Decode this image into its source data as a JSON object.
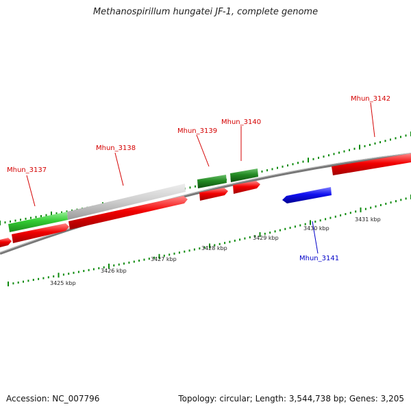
{
  "title": "Methanospirillum hungatei JF-1, complete genome",
  "footer": {
    "accession": "Accession: NC_007796",
    "summary": "Topology: circular; Length: 3,544,738 bp; Genes: 3,205"
  },
  "scale": {
    "ticks": [
      {
        "label": "3425 kbp"
      },
      {
        "label": "3426 kbp"
      },
      {
        "label": "3427 kbp"
      },
      {
        "label": "3428 kbp"
      },
      {
        "label": "3429 kbp"
      },
      {
        "label": "3430 kbp"
      },
      {
        "label": "3431 kbp"
      }
    ]
  },
  "genes": [
    {
      "name": "Mhun_3137",
      "color": "#d40000"
    },
    {
      "name": "Mhun_3138",
      "color": "#d40000"
    },
    {
      "name": "Mhun_3139",
      "color": "#d40000"
    },
    {
      "name": "Mhun_3140",
      "color": "#d40000"
    },
    {
      "name": "Mhun_3141",
      "color": "#0000c8"
    },
    {
      "name": "Mhun_3142",
      "color": "#d40000"
    }
  ],
  "colors": {
    "cds": "#e00000",
    "reverse_cds": "#1010e0",
    "feature_green": "#33c433",
    "feature_dark_green": "#1f7a1f",
    "feature_grey": "#c8c8c8",
    "backbone": "#8a8a8a",
    "tick": "#0a8a0a"
  }
}
